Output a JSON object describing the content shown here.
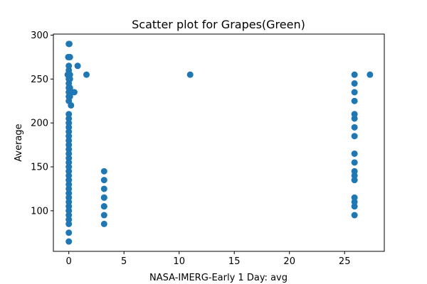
{
  "chart_data": {
    "type": "scatter",
    "title": "Scatter plot for Grapes(Green)",
    "xlabel": "NASA-IMERG-Early 1 Day: avg",
    "ylabel": "Average",
    "xlim": [
      -1.4,
      28.6
    ],
    "ylim": [
      53.8,
      301.2
    ],
    "xticks": [
      0,
      5,
      10,
      15,
      20,
      25
    ],
    "yticks": [
      100,
      150,
      200,
      250,
      300
    ],
    "grid": false,
    "legend": "none",
    "marker_color": "#1f77b4",
    "series": [
      {
        "points": [
          [
            0,
            65
          ],
          [
            0,
            75
          ],
          [
            0,
            85
          ],
          [
            0,
            90
          ],
          [
            0,
            95
          ],
          [
            0,
            100
          ],
          [
            0,
            105
          ],
          [
            0,
            110
          ],
          [
            0,
            115
          ],
          [
            0,
            120
          ],
          [
            0,
            125
          ],
          [
            0,
            130
          ],
          [
            0,
            135
          ],
          [
            0,
            140
          ],
          [
            0,
            145
          ],
          [
            0,
            150
          ],
          [
            0,
            155
          ],
          [
            0,
            160
          ],
          [
            0,
            165
          ],
          [
            0,
            170
          ],
          [
            0,
            175
          ],
          [
            0,
            180
          ],
          [
            0,
            185
          ],
          [
            0,
            190
          ],
          [
            0,
            195
          ],
          [
            0,
            200
          ],
          [
            0,
            205
          ],
          [
            0,
            210
          ],
          [
            0,
            225
          ],
          [
            0,
            230
          ],
          [
            0,
            235
          ],
          [
            0,
            240
          ],
          [
            0,
            245
          ],
          [
            0,
            250
          ],
          [
            0,
            255
          ],
          [
            0,
            260
          ],
          [
            0,
            265
          ],
          [
            0,
            275
          ],
          [
            0,
            290
          ],
          [
            -0.1,
            255
          ],
          [
            0.1,
            250
          ],
          [
            0.1,
            240
          ],
          [
            0.1,
            230
          ],
          [
            0.2,
            220
          ],
          [
            0.1,
            275
          ],
          [
            0.05,
            290
          ],
          [
            -0.05,
            275
          ],
          [
            0.1,
            255
          ],
          [
            0.3,
            235
          ],
          [
            0.5,
            235
          ],
          [
            0.8,
            265
          ],
          [
            1.6,
            255
          ],
          [
            3.2,
            85
          ],
          [
            3.2,
            95
          ],
          [
            3.2,
            105
          ],
          [
            3.2,
            115
          ],
          [
            3.2,
            125
          ],
          [
            3.2,
            135
          ],
          [
            3.2,
            145
          ],
          [
            3.2,
            105
          ],
          [
            3.2,
            115
          ],
          [
            11,
            255
          ],
          [
            25.9,
            95
          ],
          [
            25.9,
            105
          ],
          [
            25.9,
            110
          ],
          [
            25.9,
            115
          ],
          [
            25.9,
            135
          ],
          [
            25.9,
            140
          ],
          [
            25.9,
            145
          ],
          [
            25.9,
            155
          ],
          [
            25.9,
            165
          ],
          [
            25.9,
            185
          ],
          [
            25.9,
            195
          ],
          [
            25.9,
            205
          ],
          [
            25.9,
            210
          ],
          [
            25.9,
            225
          ],
          [
            25.9,
            235
          ],
          [
            25.9,
            245
          ],
          [
            25.9,
            255
          ],
          [
            27.3,
            255
          ]
        ]
      }
    ]
  }
}
